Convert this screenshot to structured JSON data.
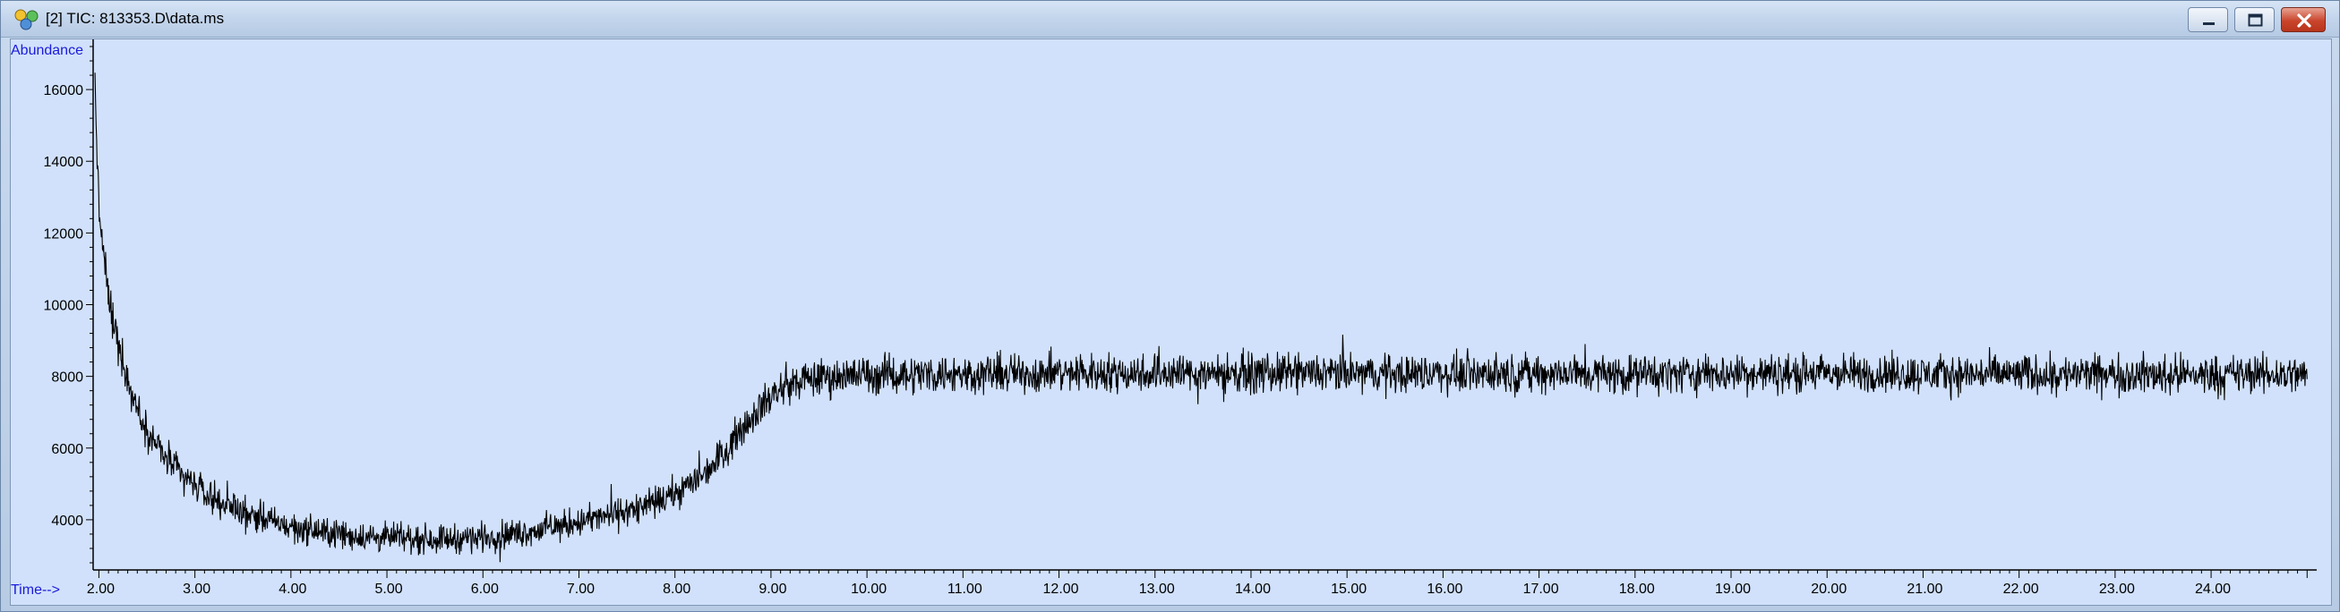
{
  "window": {
    "title": "[2] TIC: 813353.D\\data.ms",
    "icon": "chromatogram-app-icon",
    "controls": [
      "minimize-icon",
      "maximize-icon",
      "close-icon"
    ]
  },
  "colors": {
    "plot_background": "#d1e1fb",
    "trace": "#000000",
    "axis_name": "#1a1adc",
    "close_button": "#c9452c"
  },
  "chart_data": {
    "type": "line",
    "title": "",
    "xlabel": "Time-->",
    "ylabel": "Abundance",
    "xlim": [
      1.94,
      25.1
    ],
    "ylim": [
      2600,
      17400
    ],
    "x_ticks": [
      2.0,
      3.0,
      4.0,
      5.0,
      6.0,
      7.0,
      8.0,
      9.0,
      10.0,
      11.0,
      12.0,
      13.0,
      14.0,
      15.0,
      16.0,
      17.0,
      18.0,
      19.0,
      20.0,
      21.0,
      22.0,
      23.0,
      24.0
    ],
    "x_tick_labels": [
      "2.00",
      "3.00",
      "4.00",
      "5.00",
      "6.00",
      "7.00",
      "8.00",
      "9.00",
      "10.00",
      "11.00",
      "12.00",
      "13.00",
      "14.00",
      "15.00",
      "16.00",
      "17.00",
      "18.00",
      "19.00",
      "20.00",
      "21.00",
      "22.00",
      "23.00",
      "24.00"
    ],
    "y_ticks": [
      4000,
      6000,
      8000,
      10000,
      12000,
      14000,
      16000
    ],
    "y_tick_labels": [
      "4000",
      "6000",
      "8000",
      "10000",
      "12000",
      "14000",
      "16000"
    ],
    "grid": false,
    "series": [
      {
        "x": [
          1.96,
          2.0,
          2.05,
          2.1,
          2.2,
          2.3,
          2.4,
          2.5,
          2.6,
          2.7,
          2.8,
          3.0,
          3.2,
          3.4,
          3.6,
          3.8,
          4.0,
          4.2,
          4.4,
          4.6,
          4.8,
          5.0,
          5.2,
          5.4,
          5.6,
          5.8,
          6.0,
          6.2,
          6.4,
          6.6,
          6.8,
          7.0,
          7.2,
          7.4,
          7.6,
          7.8,
          8.0,
          8.2,
          8.4,
          8.6,
          8.8,
          9.0,
          9.2,
          9.4,
          9.6,
          9.8,
          10.0,
          10.5,
          11.0,
          11.5,
          12.0,
          12.5,
          13.0,
          13.5,
          14.0,
          14.5,
          15.0,
          15.5,
          16.0,
          16.5,
          17.0,
          17.5,
          18.0,
          18.5,
          19.0,
          19.5,
          20.0,
          20.5,
          21.0,
          21.5,
          22.0,
          22.5,
          23.0,
          23.5,
          24.0,
          24.5,
          25.0
        ],
        "y": [
          16200,
          12600,
          11400,
          10200,
          9000,
          7900,
          7100,
          6500,
          6100,
          5700,
          5400,
          4950,
          4600,
          4350,
          4150,
          3950,
          3800,
          3700,
          3620,
          3560,
          3520,
          3500,
          3480,
          3470,
          3470,
          3480,
          3520,
          3570,
          3640,
          3730,
          3830,
          3940,
          4050,
          4170,
          4300,
          4480,
          4720,
          5080,
          5540,
          6200,
          6900,
          7450,
          7780,
          7920,
          7990,
          8020,
          8040,
          8060,
          8080,
          8080,
          8090,
          8100,
          8100,
          8090,
          8090,
          8080,
          8080,
          8080,
          8090,
          8090,
          8080,
          8080,
          8070,
          8070,
          8080,
          8080,
          8080,
          8070,
          8060,
          8060,
          8060,
          8060,
          8050,
          8050,
          8050,
          8050,
          8050
        ],
        "noise_amplitude": 380
      }
    ]
  }
}
